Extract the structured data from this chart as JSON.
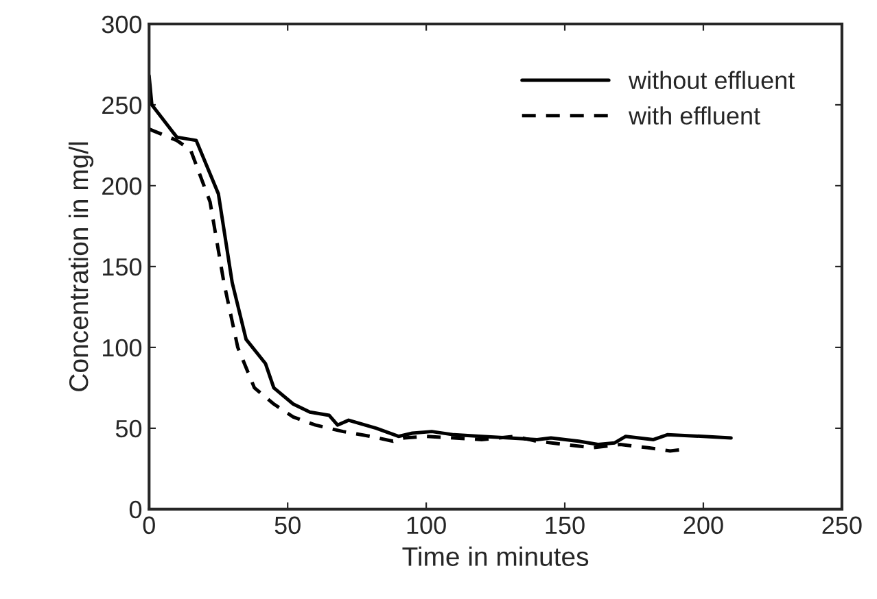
{
  "chart_data": {
    "type": "line",
    "xlabel": "Time in minutes",
    "ylabel": "Concentration in mg/l",
    "xlim": [
      0,
      250
    ],
    "xticks": [
      0,
      50,
      100,
      150,
      200,
      250
    ],
    "ylim": [
      0,
      300
    ],
    "yticks": [
      0,
      50,
      100,
      150,
      200,
      250,
      300
    ],
    "grid": false,
    "legend": "top right",
    "series": [
      {
        "name": "without effluent",
        "color": "#000000",
        "line_style": "solid",
        "x": [
          0,
          1,
          10,
          17,
          25,
          30,
          35,
          42,
          45,
          52,
          58,
          65,
          68,
          72,
          82,
          90,
          95,
          102,
          110,
          120,
          130,
          140,
          145,
          155,
          162,
          168,
          172,
          182,
          187,
          200,
          210
        ],
        "values": [
          268,
          250,
          230,
          228,
          195,
          140,
          105,
          90,
          75,
          65,
          60,
          58,
          52,
          55,
          50,
          45,
          47,
          48,
          46,
          45,
          44,
          43,
          44,
          42,
          40,
          41,
          45,
          43,
          46,
          45,
          44
        ]
      },
      {
        "name": "with effluent",
        "color": "#000000",
        "line_style": "dashed",
        "x": [
          0,
          10,
          15,
          22,
          27,
          32,
          38,
          45,
          52,
          60,
          70,
          80,
          88,
          92,
          100,
          110,
          120,
          132,
          140,
          150,
          160,
          170,
          180,
          188,
          193
        ],
        "values": [
          235,
          228,
          222,
          190,
          140,
          100,
          75,
          65,
          57,
          52,
          48,
          45,
          42,
          44,
          45,
          44,
          43,
          45,
          42,
          40,
          38,
          40,
          38,
          36,
          37
        ]
      }
    ]
  }
}
